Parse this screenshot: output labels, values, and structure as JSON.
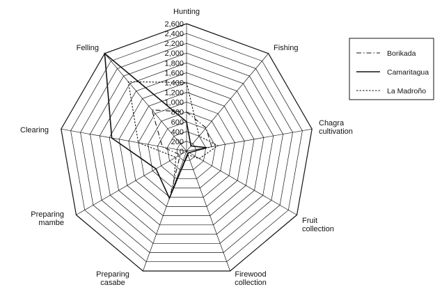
{
  "chart_data": {
    "type": "radar",
    "axes": [
      [
        "Hunting"
      ],
      [
        "Fishing"
      ],
      [
        "Chagra",
        "cultivation"
      ],
      [
        "Fruit",
        "collection"
      ],
      [
        "Firewood",
        "collection"
      ],
      [
        "Preparing",
        "casabe"
      ],
      [
        "Preparing",
        "mambe"
      ],
      [
        "Clearing"
      ],
      [
        "Felling"
      ]
    ],
    "rlim": [
      0,
      2600
    ],
    "tick_step": 200,
    "ticks": [
      "0",
      "200",
      "400",
      "600",
      "800",
      "1,000",
      "1,200",
      "1,400",
      "1,600",
      "1,800",
      "2,000",
      "2,200",
      "2,400",
      "2,600"
    ],
    "grid": true,
    "legend_position": "top-right",
    "series": [
      {
        "name": "Borikada",
        "dash": "dashdot",
        "values": [
          800,
          620,
          520,
          60,
          80,
          1000,
          150,
          500,
          1100
        ]
      },
      {
        "name": "Camaritagua",
        "dash": "solid",
        "values": [
          600,
          140,
          420,
          60,
          60,
          1020,
          720,
          1550,
          2600
        ]
      },
      {
        "name": "La Madroño",
        "dash": "dotted",
        "values": [
          1400,
          400,
          650,
          300,
          80,
          800,
          250,
          1000,
          1850
        ]
      }
    ]
  }
}
